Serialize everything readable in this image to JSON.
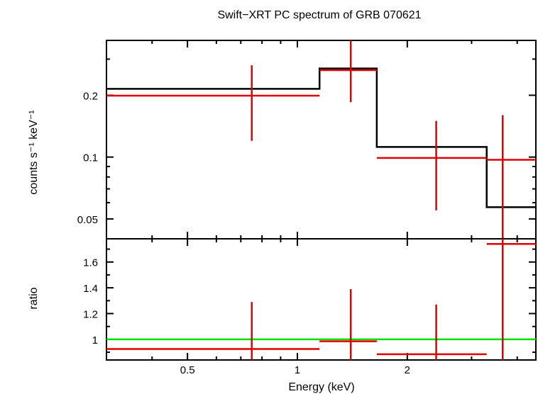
{
  "chart_data": {
    "title": "Swift−XRT PC spectrum of GRB 070621",
    "xlabel": "Energy (keV)",
    "x_scale": "log",
    "xlim": [
      0.3,
      4.5
    ],
    "x_ticks": [
      {
        "value": 0.5,
        "label": "0.5"
      },
      {
        "value": 1,
        "label": "1"
      },
      {
        "value": 2,
        "label": "2"
      }
    ],
    "colors": {
      "data": "#e00000",
      "model": "#000000",
      "unity": "#00e000",
      "frame": "#000000"
    },
    "spectrum_panel": {
      "type": "step+errorbar",
      "ylabel": "counts s⁻¹ keV⁻¹",
      "y_scale": "log",
      "ylim": [
        0.04,
        0.37
      ],
      "y_ticks": [
        {
          "value": 0.05,
          "label": "0.05"
        },
        {
          "value": 0.1,
          "label": "0.1"
        },
        {
          "value": 0.2,
          "label": "0.2"
        }
      ],
      "data": [
        {
          "x_lo": 0.3,
          "x_hi": 1.15,
          "x": 0.75,
          "y": 0.199,
          "y_lo": 0.12,
          "y_hi": 0.28
        },
        {
          "x_lo": 1.15,
          "x_hi": 1.65,
          "x": 1.4,
          "y": 0.265,
          "y_lo": 0.185,
          "y_hi": 0.37
        },
        {
          "x_lo": 1.65,
          "x_hi": 3.3,
          "x": 2.4,
          "y": 0.099,
          "y_lo": 0.055,
          "y_hi": 0.15
        },
        {
          "x_lo": 3.3,
          "x_hi": 4.5,
          "x": 3.65,
          "y": 0.097,
          "y_lo": 0.04,
          "y_hi": 0.16
        }
      ],
      "model": [
        {
          "x_lo": 0.3,
          "x_hi": 1.15,
          "y": 0.215
        },
        {
          "x_lo": 1.15,
          "x_hi": 1.65,
          "y": 0.27
        },
        {
          "x_lo": 1.65,
          "x_hi": 3.3,
          "y": 0.112
        },
        {
          "x_lo": 3.3,
          "x_hi": 4.5,
          "y": 0.057
        }
      ]
    },
    "ratio_panel": {
      "type": "errorbar",
      "ylabel": "ratio",
      "y_scale": "linear",
      "ylim": [
        0.84,
        1.78
      ],
      "y_ticks": [
        {
          "value": 1,
          "label": "1"
        },
        {
          "value": 1.2,
          "label": "1.2"
        },
        {
          "value": 1.4,
          "label": "1.4"
        },
        {
          "value": 1.6,
          "label": "1.6"
        }
      ],
      "reference_line": 1,
      "data": [
        {
          "x_lo": 0.3,
          "x_hi": 1.15,
          "x": 0.75,
          "y": 0.925,
          "y_lo": 0.84,
          "y_hi": 1.29
        },
        {
          "x_lo": 1.15,
          "x_hi": 1.65,
          "x": 1.4,
          "y": 0.985,
          "y_lo": 0.84,
          "y_hi": 1.39
        },
        {
          "x_lo": 1.65,
          "x_hi": 3.3,
          "x": 2.4,
          "y": 0.885,
          "y_lo": 0.84,
          "y_hi": 1.27
        },
        {
          "x_lo": 3.3,
          "x_hi": 4.5,
          "x": 3.65,
          "y": 1.74,
          "y_lo": 0.84,
          "y_hi": 1.78
        }
      ]
    }
  }
}
